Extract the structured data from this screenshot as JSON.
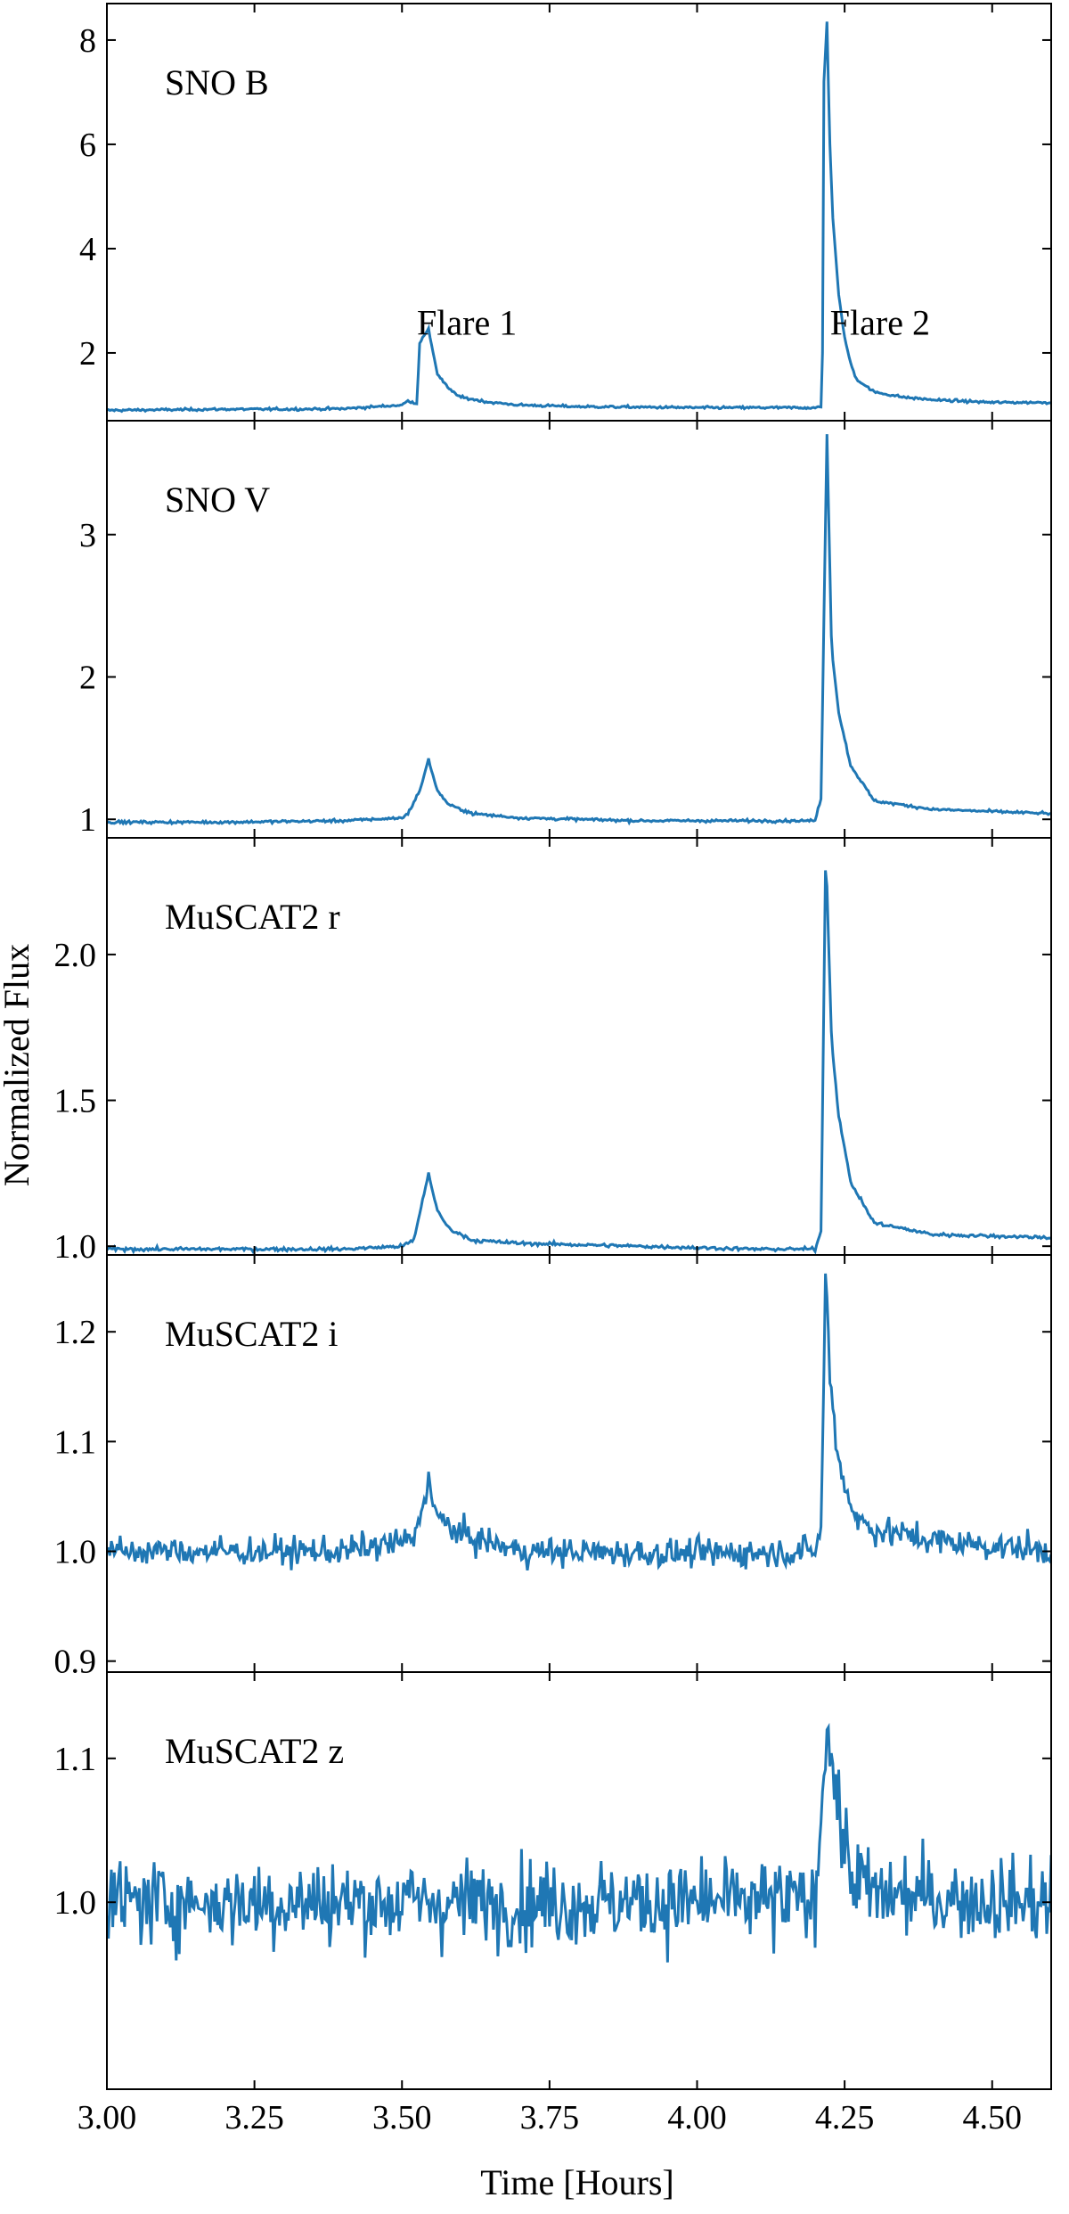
{
  "chart_data": {
    "type": "line",
    "xlabel": "Time [Hours]",
    "ylabel": "Normalized Flux",
    "xlim": [
      3.0,
      4.6
    ],
    "x_ticks": [
      3.0,
      3.25,
      3.5,
      3.75,
      4.0,
      4.25,
      4.5
    ],
    "x_tick_labels": [
      "3.00",
      "3.25",
      "3.50",
      "3.75",
      "4.00",
      "4.25",
      "4.50"
    ],
    "grid": false,
    "line_color": "#1f77b4",
    "panels": [
      {
        "label": "SNO B",
        "ylim": [
          0.7,
          8.7
        ],
        "y_ticks": [
          2,
          4,
          6,
          8
        ],
        "y_tick_labels": [
          "2",
          "4",
          "6",
          "8"
        ],
        "annotations": [
          {
            "text": "Flare 1",
            "x": 3.61,
            "y": 2.35
          },
          {
            "text": "Flare 2",
            "x": 4.31,
            "y": 2.35
          }
        ],
        "noise": 0.02,
        "series": {
          "x": [
            3.0,
            3.1,
            3.2,
            3.3,
            3.4,
            3.5,
            3.51,
            3.52,
            3.525,
            3.53,
            3.545,
            3.56,
            3.58,
            3.6,
            3.65,
            3.7,
            3.8,
            3.9,
            4.0,
            4.1,
            4.2,
            4.212,
            4.215,
            4.22,
            4.225,
            4.23,
            4.24,
            4.25,
            4.26,
            4.27,
            4.3,
            4.35,
            4.4,
            4.5,
            4.6
          ],
          "y": [
            0.9,
            0.91,
            0.92,
            0.92,
            0.93,
            1.0,
            1.08,
            1.05,
            1.02,
            2.2,
            2.45,
            1.6,
            1.3,
            1.15,
            1.05,
            1.0,
            0.97,
            0.96,
            0.95,
            0.95,
            0.95,
            0.96,
            7.2,
            8.35,
            6.0,
            4.6,
            3.1,
            2.3,
            1.8,
            1.5,
            1.25,
            1.15,
            1.1,
            1.05,
            1.05
          ]
        }
      },
      {
        "label": "SNO V",
        "ylim": [
          0.87,
          3.8
        ],
        "y_ticks": [
          1,
          2,
          3
        ],
        "y_tick_labels": [
          "1",
          "2",
          "3"
        ],
        "annotations": [],
        "noise": 0.008,
        "series": {
          "x": [
            3.0,
            3.2,
            3.4,
            3.5,
            3.51,
            3.53,
            3.545,
            3.56,
            3.58,
            3.62,
            3.7,
            3.9,
            4.1,
            4.2,
            4.21,
            4.22,
            4.228,
            4.24,
            4.26,
            4.3,
            4.4,
            4.6
          ],
          "y": [
            0.98,
            0.98,
            0.99,
            1.01,
            1.04,
            1.2,
            1.42,
            1.2,
            1.1,
            1.04,
            1.01,
            0.99,
            0.99,
            0.99,
            1.15,
            3.7,
            2.2,
            1.75,
            1.38,
            1.13,
            1.07,
            1.04
          ]
        }
      },
      {
        "label": "MuSCAT2 r",
        "ylim": [
          0.97,
          2.4
        ],
        "y_ticks": [
          1.0,
          1.5,
          2.0
        ],
        "y_tick_labels": [
          "1.0",
          "1.5",
          "2.0"
        ],
        "annotations": [],
        "noise": 0.005,
        "series": {
          "x": [
            3.0,
            3.2,
            3.4,
            3.5,
            3.52,
            3.545,
            3.56,
            3.58,
            3.62,
            3.7,
            3.9,
            4.1,
            4.2,
            4.21,
            4.218,
            4.228,
            4.24,
            4.26,
            4.3,
            4.4,
            4.6
          ],
          "y": [
            0.99,
            0.99,
            0.99,
            1.0,
            1.02,
            1.25,
            1.12,
            1.06,
            1.02,
            1.01,
            1.0,
            0.99,
            0.99,
            1.05,
            2.37,
            1.7,
            1.45,
            1.22,
            1.08,
            1.04,
            1.03
          ]
        }
      },
      {
        "label": "MuSCAT2 i",
        "ylim": [
          0.89,
          1.27
        ],
        "y_ticks": [
          0.9,
          1.0,
          1.1,
          1.2
        ],
        "y_tick_labels": [
          "0.9",
          "1.0",
          "1.1",
          "1.2"
        ],
        "annotations": [],
        "noise": 0.011,
        "series": {
          "x": [
            3.0,
            3.4,
            3.52,
            3.545,
            3.56,
            3.6,
            3.7,
            4.0,
            4.2,
            4.21,
            4.218,
            4.225,
            4.235,
            4.25,
            4.27,
            4.3,
            4.4,
            4.6
          ],
          "y": [
            1.0,
            1.0,
            1.01,
            1.065,
            1.03,
            1.015,
            1.0,
            0.998,
            1.0,
            1.02,
            1.26,
            1.16,
            1.1,
            1.06,
            1.03,
            1.02,
            1.01,
            1.0
          ]
        }
      },
      {
        "label": "MuSCAT2 z",
        "ylim": [
          0.87,
          1.16
        ],
        "y_ticks": [
          1.0,
          1.1
        ],
        "y_tick_labels": [
          "1.0",
          "1.1"
        ],
        "annotations": [],
        "noise": 0.025,
        "series": {
          "x": [
            3.0,
            4.2,
            4.21,
            4.218,
            4.228,
            4.24,
            4.26,
            4.3,
            4.6
          ],
          "y": [
            1.0,
            1.0,
            1.06,
            1.13,
            1.1,
            1.06,
            1.02,
            1.005,
            1.0
          ]
        }
      }
    ]
  }
}
